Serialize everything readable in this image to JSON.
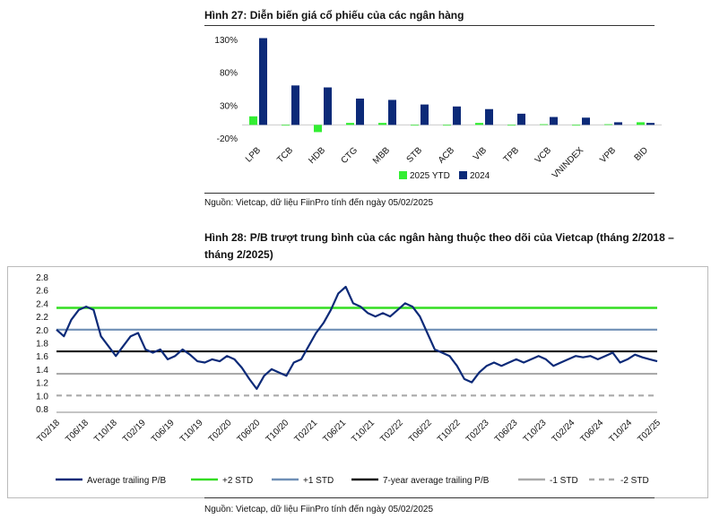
{
  "fig27": {
    "label": "Hình 27:",
    "title": "Diễn biến giá cổ phiếu của các ngân hàng",
    "source": "Nguồn: Vietcap, dữ liệu FiinPro tính đến ngày 05/02/2025"
  },
  "fig28": {
    "label": "Hình 28:",
    "title_line1": "P/B trượt trung bình của các ngân hàng thuộc theo dõi của Vietcap (tháng 2/2018 –",
    "title_line2": "tháng 2/2025)",
    "source": "Nguồn: Vietcap, dữ liệu FiinPro tính đến ngày 05/02/2025"
  },
  "colors": {
    "green_bar": "#33ee33",
    "navy": "#0c2a78",
    "plus2": "#33dd22",
    "plus1": "#6f8fb6",
    "avg": "#111111",
    "minus": "#aaaaaa"
  },
  "chart_data": [
    {
      "type": "bar",
      "categories": [
        "LPB",
        "TCB",
        "HDB",
        "CTG",
        "MBB",
        "STB",
        "ACB",
        "VIB",
        "TPB",
        "VCB",
        "VNINDEX",
        "VPB",
        "BID"
      ],
      "series": [
        {
          "name": "2025 YTD",
          "values": [
            13,
            0,
            -11,
            3,
            3,
            0,
            -1,
            3,
            0,
            1,
            0,
            1,
            4
          ]
        },
        {
          "name": "2024",
          "values": [
            132,
            60,
            57,
            40,
            38,
            31,
            28,
            24,
            17,
            12,
            11,
            4,
            3
          ]
        }
      ],
      "yticks": [
        "130%",
        "80%",
        "30%",
        "-20%"
      ],
      "ylim": [
        -20,
        130
      ],
      "legend": "bottom"
    },
    {
      "type": "line",
      "xticks": [
        "T02/18",
        "T06/18",
        "T10/18",
        "T02/19",
        "T06/19",
        "T10/19",
        "T02/20",
        "T06/20",
        "T10/20",
        "T02/21",
        "T06/21",
        "T10/21",
        "T02/22",
        "T06/22",
        "T10/22",
        "T02/23",
        "T06/23",
        "T10/23",
        "T02/24",
        "T06/24",
        "T10/24",
        "T02/25"
      ],
      "yticks": [
        "2.8",
        "2.6",
        "2.4",
        "2.2",
        "2.0",
        "1.8",
        "1.6",
        "1.4",
        "1.2",
        "1.0",
        "0.8"
      ],
      "ylim": [
        0.8,
        2.8
      ],
      "series": [
        {
          "name": "Average trailing P/B",
          "values": [
            2.0,
            1.9,
            2.15,
            2.3,
            2.35,
            2.3,
            1.9,
            1.75,
            1.6,
            1.75,
            1.9,
            1.95,
            1.7,
            1.65,
            1.7,
            1.55,
            1.6,
            1.7,
            1.62,
            1.52,
            1.5,
            1.55,
            1.52,
            1.6,
            1.55,
            1.42,
            1.25,
            1.1,
            1.3,
            1.4,
            1.35,
            1.3,
            1.5,
            1.55,
            1.75,
            1.95,
            2.1,
            2.3,
            2.55,
            2.65,
            2.4,
            2.35,
            2.25,
            2.2,
            2.25,
            2.2,
            2.3,
            2.4,
            2.35,
            2.2,
            1.95,
            1.7,
            1.65,
            1.6,
            1.45,
            1.25,
            1.2,
            1.35,
            1.45,
            1.5,
            1.45,
            1.5,
            1.55,
            1.5,
            1.55,
            1.6,
            1.55,
            1.45,
            1.5,
            1.55,
            1.6,
            1.58,
            1.6,
            1.55,
            1.6,
            1.65,
            1.5,
            1.55,
            1.62,
            1.58,
            1.55,
            1.52
          ]
        },
        {
          "name": "+2 STD",
          "values": [
            2.33
          ]
        },
        {
          "name": "+1 STD",
          "values": [
            2.0
          ]
        },
        {
          "name": "7-year average trailing P/B",
          "values": [
            1.67
          ]
        },
        {
          "name": "-1 STD",
          "values": [
            1.33
          ]
        },
        {
          "name": "-2 STD",
          "values": [
            1.0
          ]
        }
      ],
      "legend": "bottom"
    }
  ]
}
